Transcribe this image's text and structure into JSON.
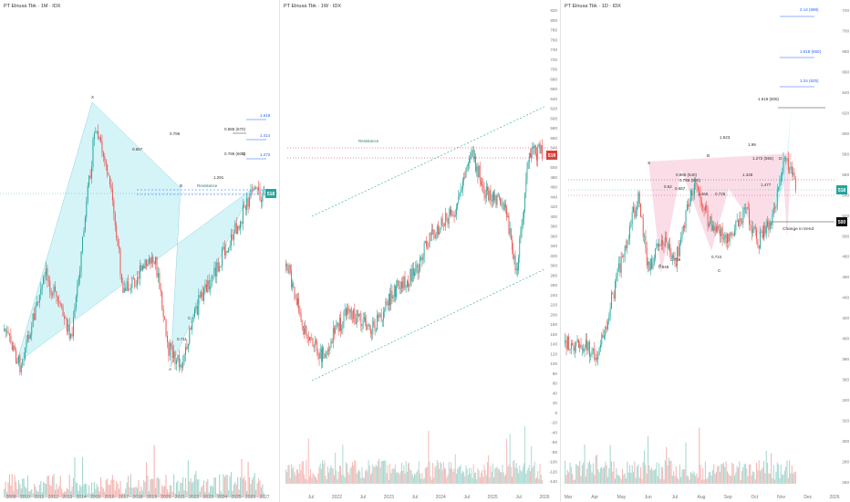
{
  "colors": {
    "up": "#26a69a",
    "down": "#ef5350",
    "vol_up": "#a7d8d0",
    "vol_down": "#f5b7b5",
    "harmonic_fill": "#b2ebf2",
    "harmonic_fill_red": "#f8bbd0",
    "channel": "#26a69a",
    "level_blue": "#2962ff",
    "price_tag": "#26a69a",
    "price_tag_red": "#e53935",
    "axis_text": "#777777",
    "grid": "#f3f3f3"
  },
  "panels": [
    {
      "title": "PT Elnusa Tbk · 1M · IDX",
      "price_tag": "518",
      "chart_data": {
        "type": "candlestick",
        "x_ticks": [
          "2009",
          "2010",
          "2011",
          "2012",
          "2013",
          "2014",
          "2015",
          "2016",
          "2017",
          "2018",
          "2019",
          "2020",
          "2021",
          "2022",
          "2023",
          "2024",
          "2025",
          "2026",
          "2027"
        ],
        "y_ticks": [],
        "patterns": [
          {
            "pattern": "harmonic XABCD",
            "points": [
              "X",
              "A",
              "B",
              "C",
              "D"
            ]
          },
          {
            "ratio_labels": [
              "0.786",
              "0.657",
              "0.711",
              "1.291"
            ]
          }
        ],
        "levels": [
          {
            "label": "Resistance"
          },
          {
            "label": "0.886 (670)"
          },
          {
            "label": "0.786 (605)"
          },
          {
            "label": "1.618"
          },
          {
            "label": "1.414"
          },
          {
            "label": "1.272"
          }
        ]
      }
    },
    {
      "title": "PT Elnusa Tbk · 1W · IDX",
      "price_tag": "518",
      "chart_data": {
        "type": "candlestick",
        "x_ticks": [
          "Jul",
          "2022",
          "Jul",
          "2023",
          "Jul",
          "2024",
          "Jul",
          "2025",
          "Jul",
          "2026"
        ],
        "y_ticks": [
          "820",
          "800",
          "780",
          "760",
          "740",
          "720",
          "700",
          "680",
          "660",
          "640",
          "620",
          "600",
          "580",
          "560",
          "540",
          "520",
          "500",
          "480",
          "460",
          "440",
          "420",
          "400",
          "380",
          "360",
          "340",
          "320",
          "300",
          "280",
          "260",
          "240",
          "220",
          "200",
          "180",
          "160",
          "140",
          "120",
          "100",
          "80",
          "60",
          "40",
          "20",
          "0",
          "-20",
          "-40",
          "-60",
          "-80",
          "-100",
          "-120",
          "-140",
          "-160"
        ],
        "levels": [
          {
            "label": "Resistance"
          }
        ],
        "annotations": [
          "ascending channel"
        ]
      }
    },
    {
      "title": "PT Elnusa Tbk · 1D · IDX",
      "price_tag": "518",
      "change_tag": "500",
      "chart_data": {
        "type": "candlestick",
        "x_ticks": [
          "Mar",
          "Apr",
          "May",
          "Jun",
          "Jul",
          "Aug",
          "Sep",
          "Oct",
          "Nov",
          "Dec",
          "2026"
        ],
        "y_ticks": [
          "720",
          "700",
          "680",
          "660",
          "640",
          "620",
          "600",
          "580",
          "560",
          "540",
          "520",
          "500",
          "480",
          "460",
          "440",
          "420",
          "400",
          "380",
          "360",
          "340",
          "320",
          "300",
          "280",
          "260"
        ],
        "levels": [
          {
            "label": "2.14 (688)"
          },
          {
            "label": "1.618 (650)"
          },
          {
            "label": "1.24 (625)"
          },
          {
            "label": "1.618 (605)"
          },
          {
            "label": "Change in trend"
          }
        ],
        "ratio_labels": [
          "1.623",
          "1.99",
          "1.272 (555)",
          "1.348",
          "0.886 (540)",
          "0.786 (530)",
          "0.657",
          "0.62",
          "1.468",
          "0.726",
          "1.477",
          "0.719",
          "0.948",
          "0.724"
        ],
        "pattern_points": [
          "X",
          "A",
          "B",
          "C",
          "D"
        ]
      }
    }
  ]
}
